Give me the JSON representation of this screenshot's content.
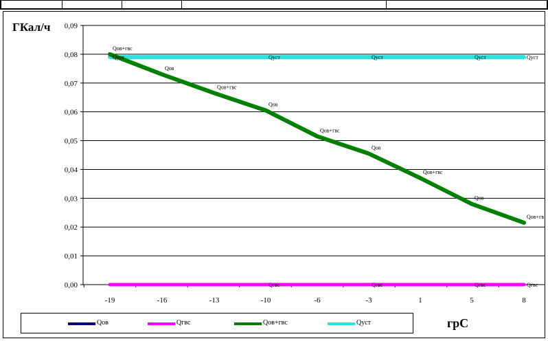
{
  "chart_data": {
    "type": "line",
    "ylabel": "ГКал/ч",
    "xlabel": "грС",
    "x_ticks": [
      "-19",
      "-16",
      "-13",
      "-10",
      "-6",
      "-3",
      "1",
      "5",
      "8"
    ],
    "y_ticks": [
      "0,00",
      "0,01",
      "0,02",
      "0,03",
      "0,04",
      "0,05",
      "0,06",
      "0,07",
      "0,08",
      "0,09"
    ],
    "ylim": [
      0,
      0.09
    ],
    "series": [
      {
        "name": "Qов",
        "color": "#000080",
        "values": [
          0.08,
          0.073,
          0.0665,
          0.0605,
          0.0515,
          0.0455,
          0.037,
          0.028,
          0.0215
        ],
        "point_labels": [
          "",
          "Qов",
          "",
          "Qов",
          "",
          "Qов",
          "",
          "Qов",
          ""
        ]
      },
      {
        "name": "Qгвс",
        "color": "#ff00ff",
        "values": [
          0,
          0,
          0,
          0,
          0,
          0,
          0,
          0,
          0
        ],
        "point_labels": [
          "",
          "",
          "",
          "Qгвс",
          "",
          "Qгвс",
          "",
          "Qгвс",
          "Qгвс"
        ]
      },
      {
        "name": "Qов+гвс",
        "color": "#008000",
        "values": [
          0.08,
          0.073,
          0.0665,
          0.0605,
          0.0515,
          0.0455,
          0.037,
          0.028,
          0.0215
        ],
        "point_labels": [
          "Qов+гвс",
          "",
          "Qов+гвс",
          "",
          "Qов+гвс",
          "",
          "Qов+гвс",
          "",
          "Qов+гв"
        ]
      },
      {
        "name": "Qуст",
        "color": "#33e0e0",
        "values": [
          0.079,
          0.079,
          0.079,
          0.079,
          0.079,
          0.079,
          0.079,
          0.079,
          0.079
        ],
        "point_labels": [
          "Qуст",
          "",
          "",
          "Qуст",
          "",
          "Qуст",
          "",
          "Qуст",
          "Qуст"
        ]
      }
    ],
    "grid": true,
    "legend_position": "bottom"
  }
}
